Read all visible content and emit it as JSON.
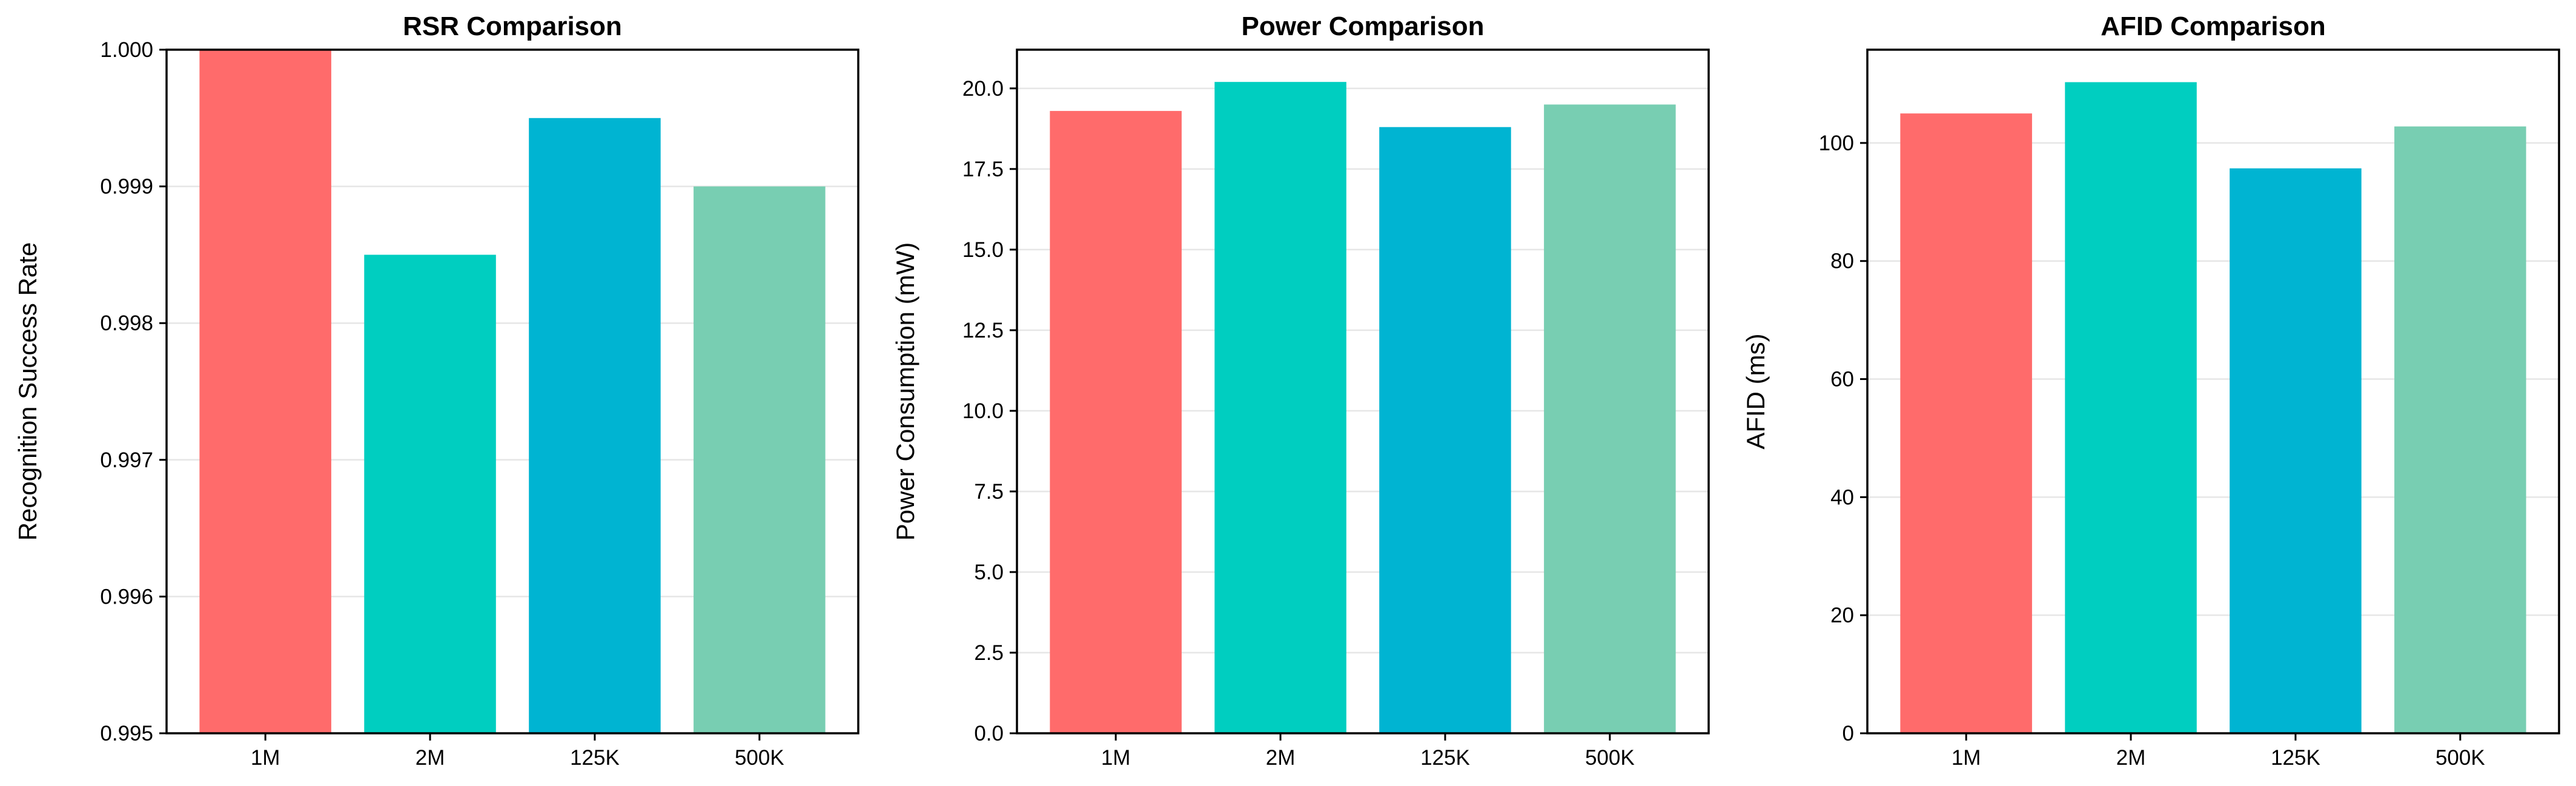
{
  "chart_data": [
    {
      "type": "bar",
      "title": "RSR Comparison",
      "xlabel": "",
      "ylabel": "Recognition Success Rate",
      "categories": [
        "1M",
        "2M",
        "125K",
        "500K"
      ],
      "values": [
        1.0,
        0.9985,
        0.9995,
        0.999
      ],
      "ylim": [
        0.995,
        1.0
      ],
      "yticks": [
        0.995,
        0.996,
        0.997,
        0.998,
        0.999,
        1.0
      ],
      "ytick_labels": [
        "0.995",
        "0.996",
        "0.997",
        "0.998",
        "0.999",
        "1.000"
      ],
      "colors": [
        "#FF6B6B",
        "#00CEC0",
        "#00B4D2",
        "#78CEB2"
      ],
      "grid": true
    },
    {
      "type": "bar",
      "title": "Power Comparison",
      "xlabel": "",
      "ylabel": "Power Consumption (mW)",
      "categories": [
        "1M",
        "2M",
        "125K",
        "500K"
      ],
      "values": [
        19.3,
        20.2,
        18.8,
        19.5
      ],
      "ylim": [
        0,
        21.2
      ],
      "yticks": [
        0,
        2.5,
        5.0,
        7.5,
        10.0,
        12.5,
        15.0,
        17.5,
        20.0
      ],
      "ytick_labels": [
        "0.0",
        "2.5",
        "5.0",
        "7.5",
        "10.0",
        "12.5",
        "15.0",
        "17.5",
        "20.0"
      ],
      "colors": [
        "#FF6B6B",
        "#00CEC0",
        "#00B4D2",
        "#78CEB2"
      ],
      "grid": true
    },
    {
      "type": "bar",
      "title": "AFID Comparison",
      "xlabel": "",
      "ylabel": "AFID (ms)",
      "categories": [
        "1M",
        "2M",
        "125K",
        "500K"
      ],
      "values": [
        105,
        110.3,
        95.7,
        102.8
      ],
      "ylim": [
        0,
        115.8
      ],
      "yticks": [
        0,
        20,
        40,
        60,
        80,
        100
      ],
      "ytick_labels": [
        "0",
        "20",
        "40",
        "60",
        "80",
        "100"
      ],
      "colors": [
        "#FF6B6B",
        "#00CEC0",
        "#00B4D2",
        "#78CEB2"
      ],
      "grid": true
    }
  ]
}
